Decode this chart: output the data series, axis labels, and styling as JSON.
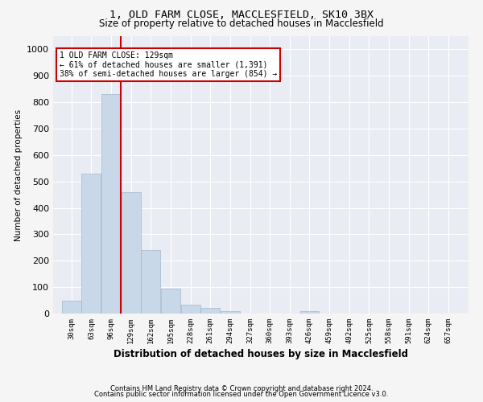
{
  "title1": "1, OLD FARM CLOSE, MACCLESFIELD, SK10 3BX",
  "title2": "Size of property relative to detached houses in Macclesfield",
  "xlabel": "Distribution of detached houses by size in Macclesfield",
  "ylabel": "Number of detached properties",
  "footer1": "Contains HM Land Registry data © Crown copyright and database right 2024.",
  "footer2": "Contains public sector information licensed under the Open Government Licence v3.0.",
  "annotation_line1": "1 OLD FARM CLOSE: 129sqm",
  "annotation_line2": "← 61% of detached houses are smaller (1,391)",
  "annotation_line3": "38% of semi-detached houses are larger (854) →",
  "bar_edges": [
    30,
    63,
    96,
    129,
    162,
    195,
    228,
    261,
    294,
    327,
    360,
    393,
    426,
    459,
    492,
    525,
    558,
    591,
    624,
    657,
    690
  ],
  "bar_heights": [
    50,
    530,
    830,
    460,
    240,
    95,
    35,
    20,
    10,
    0,
    0,
    0,
    8,
    0,
    0,
    0,
    0,
    0,
    0,
    0
  ],
  "bar_color": "#c8d8e8",
  "bar_edgecolor": "#a0b8cc",
  "property_line_x": 129,
  "property_line_color": "#cc0000",
  "ylim": [
    0,
    1050
  ],
  "bg_color": "#eaecf4",
  "grid_color": "#ffffff",
  "annotation_box_color": "#ffffff",
  "annotation_box_edge": "#cc0000",
  "fig_bg_color": "#f5f5f5"
}
